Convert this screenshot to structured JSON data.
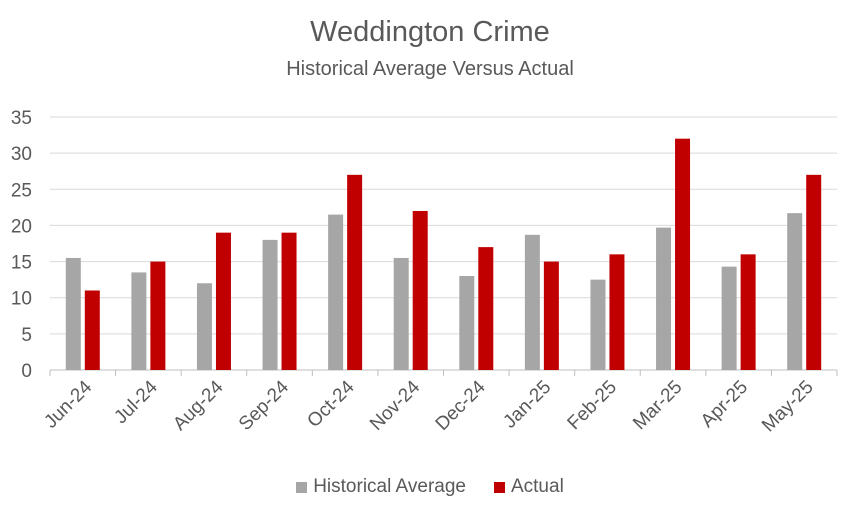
{
  "chart_data": {
    "type": "bar",
    "title": "Weddington Crime",
    "subtitle": "Historical Average Versus Actual",
    "categories": [
      "Jun-24",
      "Jul-24",
      "Aug-24",
      "Sep-24",
      "Oct-24",
      "Nov-24",
      "Dec-24",
      "Jan-25",
      "Feb-25",
      "Mar-25",
      "Apr-25",
      "May-25"
    ],
    "series": [
      {
        "name": "Historical Average",
        "color": "#a6a6a6",
        "values": [
          15.5,
          13.5,
          12,
          18,
          21.5,
          15.5,
          13,
          18.7,
          12.5,
          19.7,
          14.3,
          21.7
        ]
      },
      {
        "name": "Actual",
        "color": "#c00000",
        "values": [
          11,
          15,
          19,
          19,
          27,
          22,
          17,
          15,
          16,
          32,
          16,
          27
        ]
      }
    ],
    "ylim": [
      0,
      35
    ],
    "yticks": [
      0,
      5,
      10,
      15,
      20,
      25,
      30,
      35
    ],
    "grid": true,
    "legend": "bottom"
  }
}
